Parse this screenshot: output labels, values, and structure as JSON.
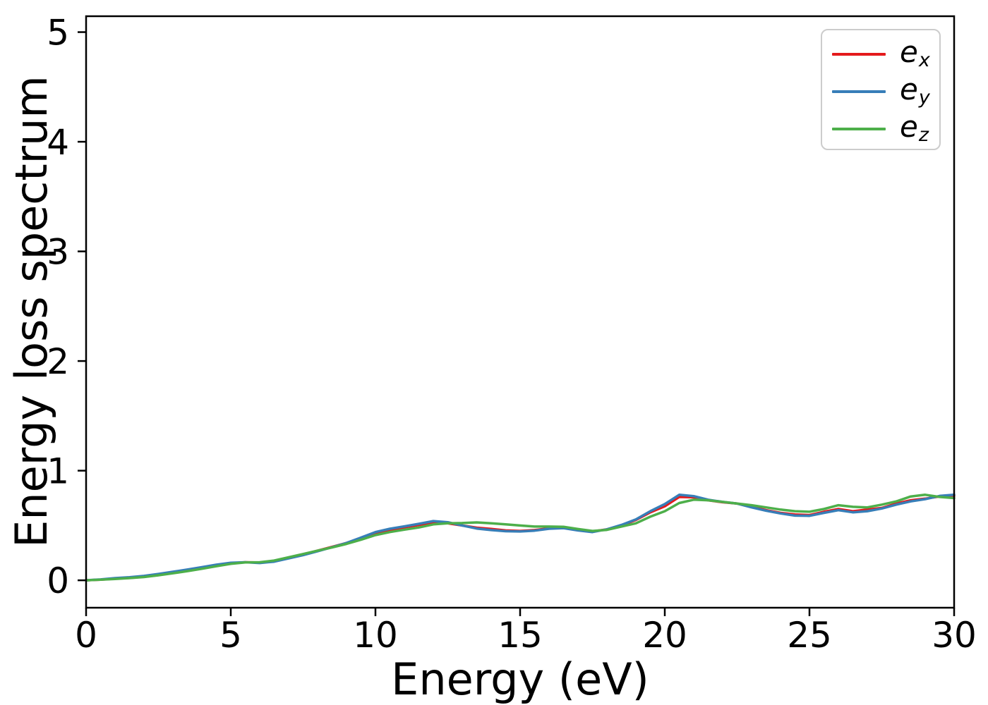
{
  "figure": {
    "background": "#ffffff"
  },
  "chart_data": {
    "type": "line",
    "title": "",
    "xlabel": "Energy (eV)",
    "ylabel": "Energy loss spectrum",
    "xlim": [
      0,
      30
    ],
    "ylim": [
      -0.25,
      5.145
    ],
    "xticks": [
      0,
      5,
      10,
      15,
      20,
      25,
      30
    ],
    "yticks": [
      0,
      1,
      2,
      3,
      4,
      5
    ],
    "grid": false,
    "legend_position": "upper right",
    "axis_color": "#000000",
    "x": [
      0,
      0.5,
      1,
      1.5,
      2,
      2.5,
      3,
      3.5,
      4,
      4.5,
      5,
      5.5,
      6,
      6.5,
      7,
      7.5,
      8,
      8.5,
      9,
      9.5,
      10,
      10.5,
      11,
      11.5,
      12,
      12.5,
      13,
      13.5,
      14,
      14.5,
      15,
      15.5,
      16,
      16.5,
      17,
      17.5,
      18,
      18.5,
      19,
      19.5,
      20,
      20.5,
      21,
      21.5,
      22,
      22.5,
      23,
      23.5,
      24,
      24.5,
      25,
      25.5,
      26,
      26.5,
      27,
      27.5,
      28,
      28.5,
      29,
      29.5,
      30
    ],
    "series": [
      {
        "name": "e_x",
        "label_base": "e",
        "label_sub": "x",
        "color": "#e41a1c",
        "values": [
          0.0,
          0.006,
          0.015,
          0.022,
          0.032,
          0.048,
          0.068,
          0.088,
          0.11,
          0.132,
          0.155,
          0.165,
          0.162,
          0.175,
          0.205,
          0.235,
          0.27,
          0.305,
          0.34,
          0.385,
          0.43,
          0.46,
          0.483,
          0.505,
          0.527,
          0.52,
          0.5,
          0.48,
          0.468,
          0.455,
          0.45,
          0.458,
          0.475,
          0.48,
          0.46,
          0.445,
          0.465,
          0.5,
          0.55,
          0.62,
          0.675,
          0.76,
          0.757,
          0.73,
          0.712,
          0.7,
          0.67,
          0.64,
          0.615,
          0.6,
          0.595,
          0.625,
          0.65,
          0.63,
          0.645,
          0.66,
          0.7,
          0.73,
          0.745,
          0.765,
          0.77
        ]
      },
      {
        "name": "e_y",
        "label_base": "e",
        "label_sub": "y",
        "color": "#377eb8",
        "values": [
          0.0,
          0.008,
          0.02,
          0.028,
          0.04,
          0.058,
          0.078,
          0.098,
          0.12,
          0.142,
          0.16,
          0.165,
          0.158,
          0.17,
          0.2,
          0.23,
          0.265,
          0.302,
          0.34,
          0.39,
          0.44,
          0.47,
          0.492,
          0.515,
          0.54,
          0.53,
          0.5,
          0.472,
          0.458,
          0.448,
          0.445,
          0.453,
          0.47,
          0.476,
          0.455,
          0.44,
          0.465,
          0.505,
          0.555,
          0.63,
          0.695,
          0.78,
          0.768,
          0.735,
          0.715,
          0.7,
          0.665,
          0.635,
          0.61,
          0.59,
          0.588,
          0.615,
          0.64,
          0.62,
          0.63,
          0.655,
          0.69,
          0.72,
          0.74,
          0.77,
          0.78
        ]
      },
      {
        "name": "e_z",
        "label_base": "e",
        "label_sub": "z",
        "color": "#4daf4a",
        "values": [
          0.0,
          0.005,
          0.012,
          0.02,
          0.03,
          0.046,
          0.064,
          0.084,
          0.105,
          0.128,
          0.15,
          0.163,
          0.165,
          0.18,
          0.21,
          0.24,
          0.27,
          0.3,
          0.332,
          0.37,
          0.412,
          0.44,
          0.462,
          0.482,
          0.51,
          0.52,
          0.522,
          0.528,
          0.52,
          0.51,
          0.5,
          0.49,
          0.49,
          0.488,
          0.468,
          0.45,
          0.46,
          0.49,
          0.52,
          0.58,
          0.63,
          0.705,
          0.735,
          0.73,
          0.715,
          0.7,
          0.685,
          0.665,
          0.645,
          0.63,
          0.625,
          0.65,
          0.685,
          0.67,
          0.665,
          0.69,
          0.72,
          0.765,
          0.78,
          0.76,
          0.75
        ]
      }
    ]
  }
}
